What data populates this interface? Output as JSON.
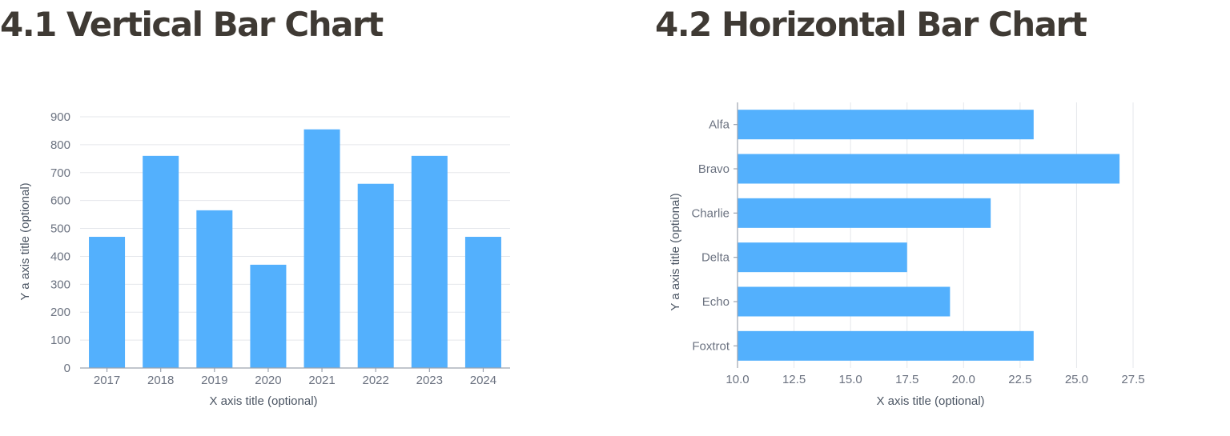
{
  "sections": [
    {
      "number": "4.1",
      "title": "Vertical Bar Chart"
    },
    {
      "number": "4.2",
      "title": "Horizontal Bar Chart"
    }
  ],
  "bar_color": "#53b0fd",
  "chart_data": [
    {
      "type": "bar",
      "orientation": "vertical",
      "categories": [
        "2017",
        "2018",
        "2019",
        "2020",
        "2021",
        "2022",
        "2023",
        "2024"
      ],
      "values": [
        470,
        760,
        565,
        370,
        855,
        660,
        760,
        470
      ],
      "xlabel": "X axis title (optional)",
      "ylabel": "Y a axis title (optional)",
      "ylim": [
        0,
        900
      ],
      "yticks": [
        "0",
        "100",
        "200",
        "300",
        "400",
        "500",
        "600",
        "700",
        "800",
        "900"
      ],
      "grid": "horizontal"
    },
    {
      "type": "bar",
      "orientation": "horizontal",
      "categories": [
        "Alfa",
        "Bravo",
        "Charlie",
        "Delta",
        "Echo",
        "Foxtrot"
      ],
      "values": [
        23.1,
        26.9,
        21.2,
        17.5,
        19.4,
        23.1
      ],
      "xlabel": "X axis title (optional)",
      "ylabel": "Y a axis title (optional)",
      "xlim": [
        10.0,
        27.5
      ],
      "xticks": [
        "10.0",
        "12.5",
        "15.0",
        "17.5",
        "20.0",
        "22.5",
        "25.0",
        "27.5"
      ],
      "grid": "vertical"
    }
  ]
}
